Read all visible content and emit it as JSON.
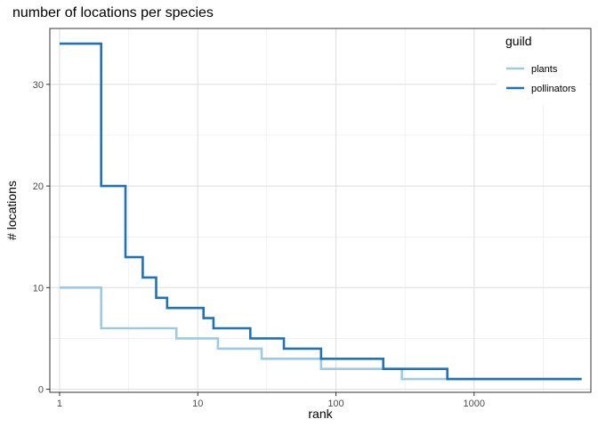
{
  "chart_data": {
    "type": "line",
    "step": true,
    "title": "number of locations per species",
    "xlabel": "rank",
    "ylabel": "# locations",
    "x_scale": "log10",
    "xlim": [
      0.85,
      7000
    ],
    "ylim": [
      -0.3,
      35.5
    ],
    "x_ticks": [
      1,
      10,
      100,
      1000
    ],
    "x_tick_labels": [
      "1",
      "10",
      "100",
      "1000"
    ],
    "y_ticks": [
      0,
      10,
      20,
      30
    ],
    "y_tick_labels": [
      "0",
      "10",
      "20",
      "30"
    ],
    "grid": true,
    "legend": {
      "title": "guild",
      "placement": "top-right"
    },
    "series": [
      {
        "name": "plants",
        "color": "#9ecae1",
        "x": [
          1,
          2,
          7,
          14,
          29,
          78,
          300,
          6000
        ],
        "y": [
          10,
          6,
          5,
          4,
          3,
          2,
          1,
          1
        ]
      },
      {
        "name": "pollinators",
        "color": "#2171b5",
        "x": [
          1,
          2,
          3,
          4,
          5,
          6,
          11,
          13,
          24,
          42,
          78,
          220,
          640,
          6000
        ],
        "y": [
          34,
          20,
          13,
          11,
          9,
          8,
          7,
          6,
          5,
          4,
          3,
          2,
          1,
          1
        ]
      }
    ]
  }
}
